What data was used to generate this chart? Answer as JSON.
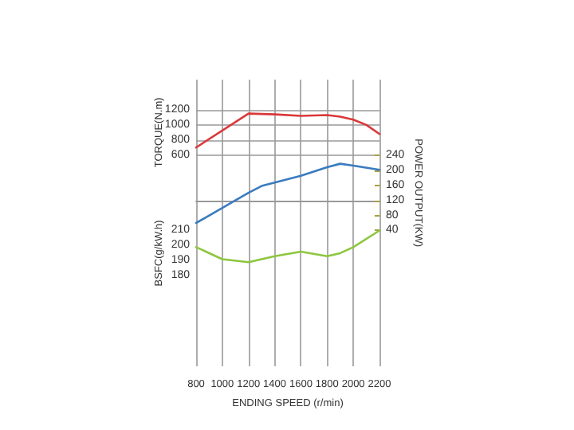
{
  "chart_data": {
    "type": "line",
    "xlabel": "ENDING SPEED (r/min)",
    "ylabel": "TORQUE(N.m)",
    "y2label": "POWER OUTPUT(KW)",
    "y3label": "BSFC(g/kW.h)",
    "xlim": [
      800,
      2200
    ],
    "xticks": [
      800,
      1000,
      1200,
      1400,
      1600,
      1800,
      2000,
      2200
    ],
    "ylim": [
      -2200,
      1600
    ],
    "yticks": [
      600,
      800,
      1000,
      1200
    ],
    "y2lim": [
      -320,
      440
    ],
    "y2ticks": [
      40,
      80,
      120,
      160,
      200,
      240
    ],
    "y3lim": [
      120,
      310
    ],
    "y3ticks": [
      180,
      190,
      200,
      210
    ],
    "grid": true,
    "marker": "none",
    "line_style": "solid",
    "series": [
      {
        "color": "#d9383a",
        "x": [
          800,
          1200,
          1400,
          1600,
          1800,
          1900,
          2000,
          2100,
          2200
        ],
        "values": [
          700,
          1150,
          1140,
          1120,
          1130,
          1110,
          1070,
          1000,
          880
        ]
      },
      {
        "color": "#3a7bbf",
        "axis": "y2",
        "x": [
          800,
          1000,
          1200,
          1300,
          1600,
          1800,
          1900,
          2000,
          2200
        ],
        "values": [
          60,
          100,
          140,
          158,
          185,
          208,
          217,
          212,
          201
        ]
      },
      {
        "color": "#8dc63f",
        "axis": "y3",
        "x": [
          800,
          1000,
          1200,
          1400,
          1600,
          1800,
          1900,
          2000,
          2200
        ],
        "values": [
          199,
          191,
          189,
          193,
          196,
          193,
          195,
          199,
          210
        ]
      }
    ]
  }
}
